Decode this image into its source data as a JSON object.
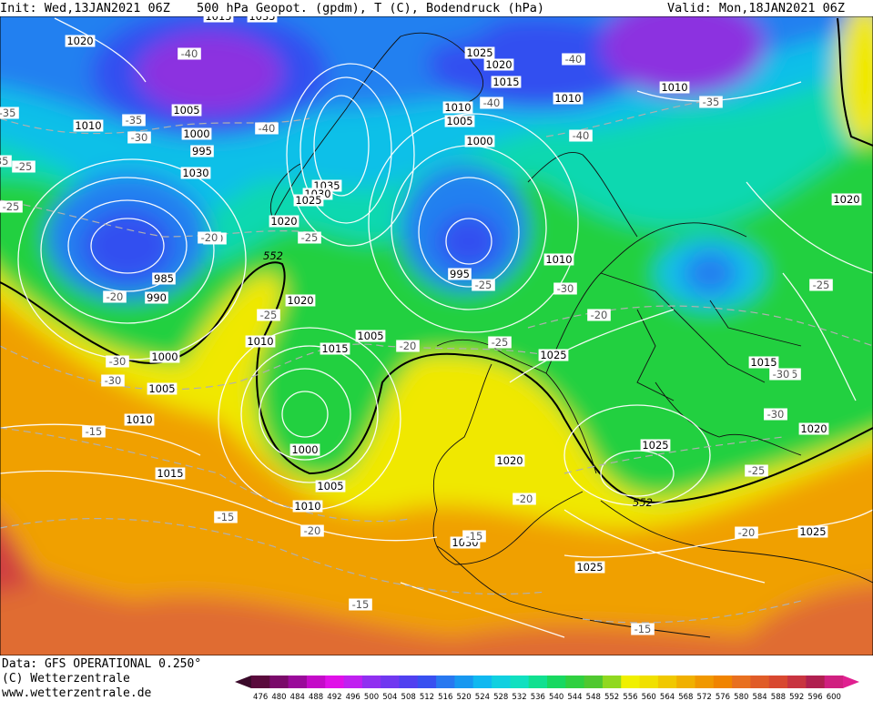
{
  "header": {
    "init": "Init: Wed,13JAN2021 06Z",
    "title": "500 hPa Geopot. (gpdm), T (C), Bodendruck (hPa)",
    "valid": "Valid: Mon,18JAN2021 06Z"
  },
  "footer": {
    "data_source": "Data: GFS OPERATIONAL 0.250°",
    "copyright": "(C) Wetterzentrale",
    "website": "www.wetterzentrale.de"
  },
  "colorbar": {
    "ticks": [
      "476",
      "480",
      "484",
      "488",
      "492",
      "496",
      "500",
      "504",
      "508",
      "512",
      "516",
      "520",
      "524",
      "528",
      "532",
      "536",
      "540",
      "544",
      "548",
      "552",
      "556",
      "560",
      "564",
      "568",
      "572",
      "576",
      "580",
      "584",
      "588",
      "592",
      "596",
      "600"
    ],
    "colors": [
      "#5a0a3c",
      "#7a0a6a",
      "#9a0a9a",
      "#c40ac8",
      "#e010e8",
      "#c020f0",
      "#9030f0",
      "#7038f0",
      "#5040f0",
      "#3850f0",
      "#2878f0",
      "#1898f0",
      "#10b8f0",
      "#10d0e0",
      "#10e0c0",
      "#10e090",
      "#18d860",
      "#30d040",
      "#50c830",
      "#90d820",
      "#f0f000",
      "#f0e000",
      "#f0c800",
      "#f0b000",
      "#f09800",
      "#f08400",
      "#e87020",
      "#e05c28",
      "#d84830",
      "#c83440",
      "#b02050",
      "#d02080"
    ]
  },
  "map": {
    "colors": {
      "purple": "#8c30e0",
      "deep_blue": "#3050f0",
      "blue": "#2080f0",
      "cyan": "#10c0e8",
      "teal": "#10d8b0",
      "green": "#20d040",
      "yellow": "#f0e800",
      "orange": "#f0a000",
      "dark_orange": "#e06c30",
      "red": "#d04040"
    },
    "contour_552_labels": [
      "552",
      "552"
    ],
    "pressure_labels": [
      "1015",
      "1020",
      "1010",
      "1005",
      "1000",
      "995",
      "1030",
      "1025",
      "1020",
      "1015",
      "1010",
      "1010",
      "1005",
      "1000",
      "1035",
      "1030",
      "1025",
      "1020",
      "1010",
      "995",
      "985",
      "990",
      "1000",
      "1005",
      "1010",
      "1020",
      "1015",
      "1005",
      "1010",
      "1000",
      "1005",
      "1010",
      "1015",
      "1020",
      "1030",
      "1025",
      "1025",
      "1010",
      "1020",
      "1015",
      "1020",
      "1025",
      "1025",
      "1035"
    ],
    "temperature_labels": [
      "-40",
      "-40",
      "-35",
      "-30",
      "-40",
      "-40",
      "-35",
      "-40",
      "-40",
      "-25",
      "-20",
      "-25",
      "-25",
      "-30",
      "-20",
      "-20",
      "-25",
      "-30",
      "-30",
      "-25",
      "-20",
      "-25",
      "-25",
      "-20",
      "-15",
      "-25",
      "-35",
      "-30",
      "-15",
      "-20",
      "-20",
      "-15",
      "-15",
      "-15",
      "-20",
      "-25",
      "-35",
      "-30",
      "-35"
    ]
  }
}
